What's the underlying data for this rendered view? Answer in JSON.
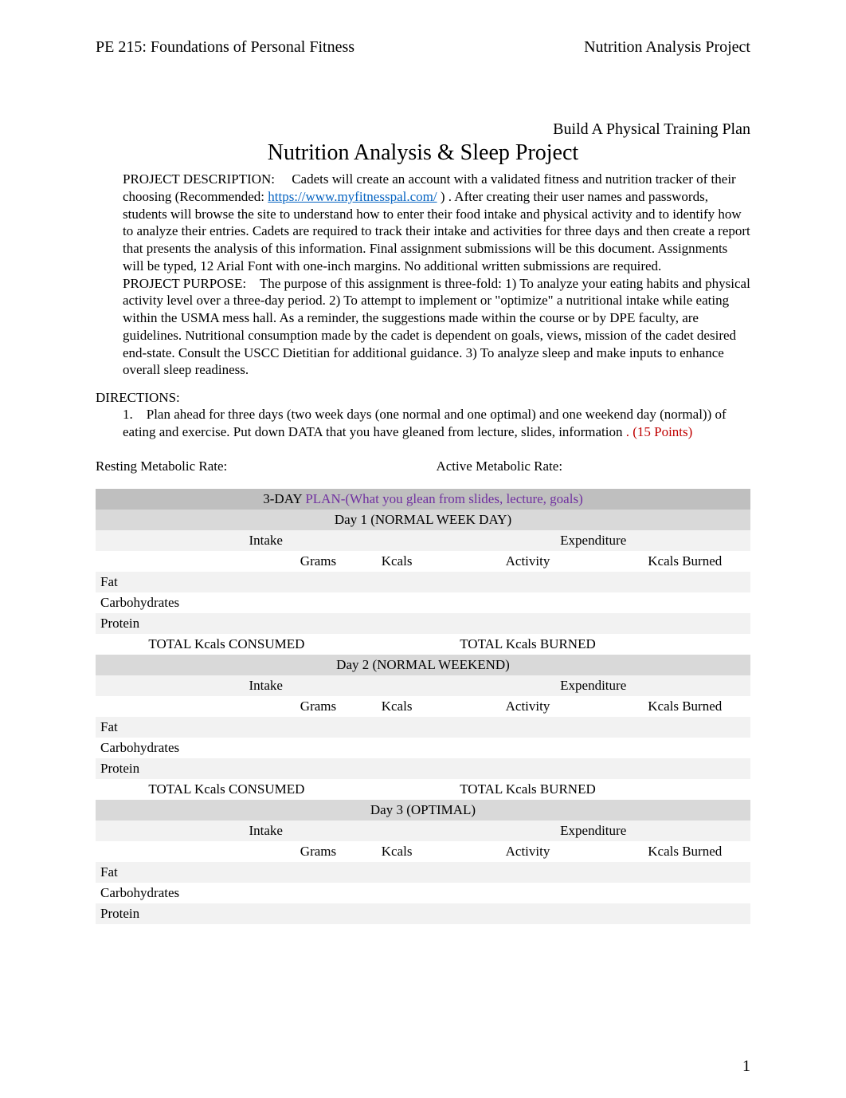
{
  "header": {
    "left": "PE 215: Foundations of Personal Fitness",
    "right": "Nutrition Analysis Project"
  },
  "build_line": "Build A Physical Training Plan",
  "title": "Nutrition Analysis & Sleep Project",
  "desc_label": "PROJECT DESCRIPTION:",
  "desc_part1": "Cadets will create an account with a validated fitness and nutrition tracker of their choosing (Recommended: ",
  "desc_link": "https://www.myfitnesspal.com/",
  "desc_part2": " ) .   After creating their user names and passwords, students will browse the site to understand how to enter their food intake and physical activity and to identify how to analyze their entries. Cadets are required to track their intake and activities for three days and then create a report that presents the analysis of this information.   Final assignment submissions will be this document.   Assignments will be typed, 12 Arial Font with one-inch margins. No additional written submissions are required.",
  "purpose_label": "PROJECT PURPOSE:",
  "purpose_text": "The purpose of this assignment is three-fold:  1) To analyze your eating habits and physical activity level over a three-day period.  2) To attempt to implement or \"optimize\" a nutritional intake while eating within the USMA mess hall.   As a reminder, the suggestions made within the course or by DPE faculty, are guidelines.   Nutritional consumption made by the cadet is dependent on goals, views, mission of the cadet desired end-state.   Consult the USCC Dietitian for additional guidance.  3) To analyze sleep and make inputs to enhance overall sleep readiness.",
  "directions_label": "DIRECTIONS:",
  "direction_1_num": "1.",
  "direction_1a": "Plan ahead  for three days (two week days (one normal and one optimal) and one weekend day (normal)) of eating and exercise.  Put down DATA that you have gleaned from lecture, slides, information",
  "direction_1_points": ". (15 Points)",
  "rmr_label": "Resting Metabolic Rate:",
  "amr_label": "Active Metabolic Rate:",
  "plan_title_prefix": "3-DAY ",
  "plan_title_colored": "PLAN-(What you glean from slides, lecture, goals)",
  "day1_label": "Day 1  (NORMAL WEEK DAY)",
  "day2_label": "Day 2 (NORMAL WEEKEND)",
  "day3_label": "Day 3 (OPTIMAL)",
  "intake_label": "Intake",
  "expenditure_label": "Expenditure",
  "grams_label": "Grams",
  "kcals_label": "Kcals",
  "activity_label": "Activity",
  "kcals_burned_label": "Kcals Burned",
  "fat_label": "Fat",
  "carbs_label": "Carbohydrates",
  "protein_label": "Protein",
  "total_consumed_label": "TOTAL Kcals CONSUMED",
  "total_burned_label": "TOTAL Kcals BURNED",
  "page_number": "1",
  "colors": {
    "link": "#0563c1",
    "red": "#c00000",
    "purple": "#7030a0",
    "band_dark": "#bfbfbf",
    "band_light": "#d9d9d9",
    "zebra": "#f2f2f2",
    "text": "#000000",
    "bg": "#ffffff"
  }
}
